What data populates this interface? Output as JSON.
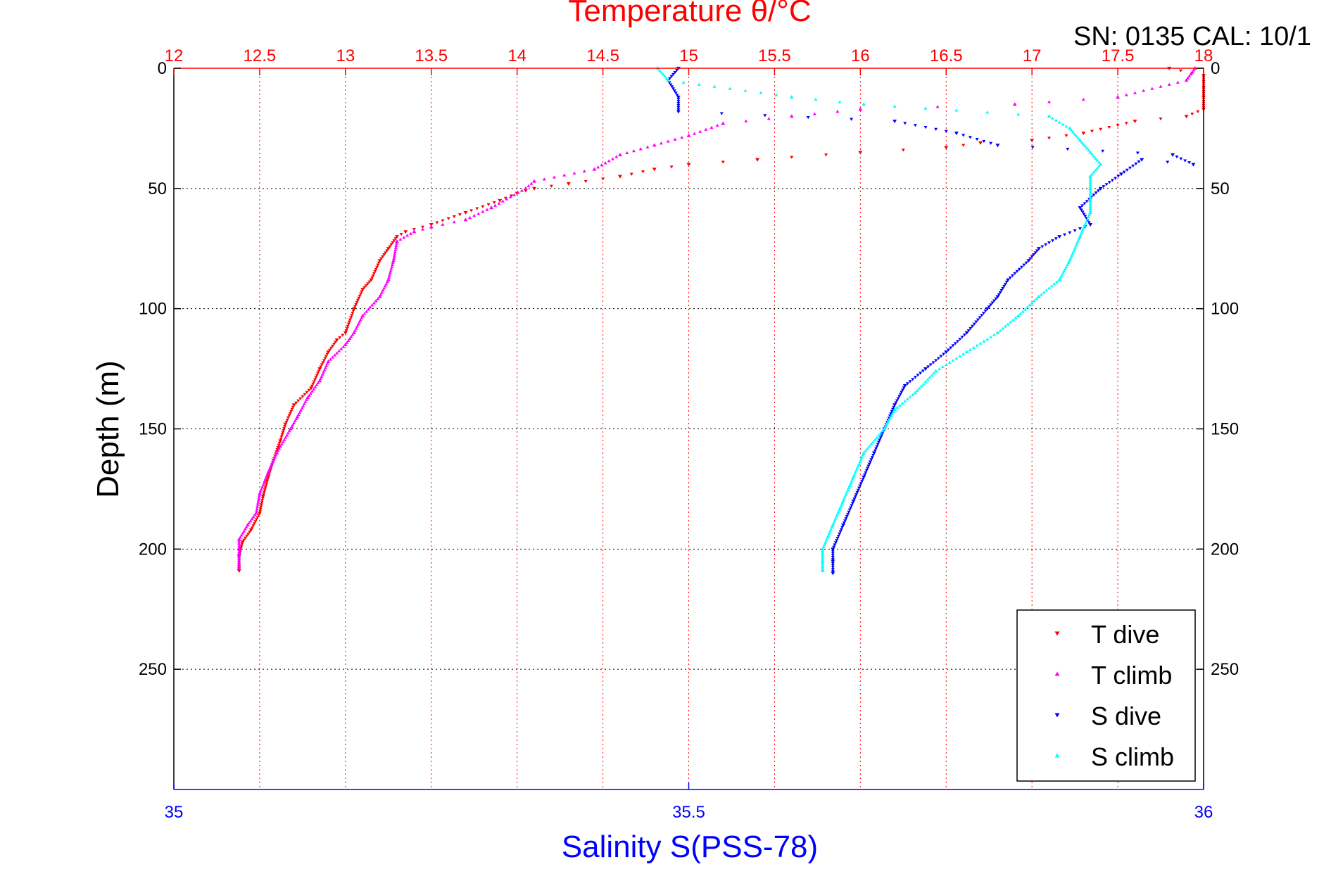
{
  "colors": {
    "t_dive": "#ff0000",
    "t_climb": "#ff00ff",
    "s_dive": "#0000ff",
    "s_climb": "#00ffff",
    "frame": "#000000"
  },
  "header": {
    "serial_text": "SN: 0135  CAL: 10/1"
  },
  "chart_data": {
    "type": "scatter",
    "title": "Temperature θ/°C",
    "ylabel": "Depth (m)",
    "xlabel": "Salinity S(PSS-78)",
    "x_top": {
      "label": "Temperature θ/°C",
      "range": [
        12,
        18
      ],
      "ticks": [
        "12",
        "12.5",
        "13",
        "13.5",
        "14",
        "14.5",
        "15",
        "15.5",
        "16",
        "16.5",
        "17",
        "17.5",
        "18"
      ]
    },
    "x_bottom": {
      "label": "Salinity S(PSS-78)",
      "range": [
        35,
        36
      ],
      "ticks": [
        "35",
        "35.5",
        "36"
      ]
    },
    "y": {
      "range": [
        0,
        300
      ],
      "reversed": true,
      "ticks": [
        "0",
        "50",
        "100",
        "150",
        "200",
        "250"
      ]
    },
    "grid": true,
    "legend_position": "bottom-right",
    "series": [
      {
        "name": "T dive",
        "axis": "top",
        "color": "#ff0000",
        "marker": "triangle-down",
        "points": [
          [
            17.8,
            0
          ],
          [
            18.0,
            3
          ],
          [
            18.0,
            8
          ],
          [
            18.0,
            12
          ],
          [
            18.0,
            17
          ],
          [
            17.9,
            20
          ],
          [
            17.6,
            22
          ],
          [
            17.3,
            27
          ],
          [
            17.0,
            30
          ],
          [
            16.7,
            31
          ],
          [
            16.5,
            33
          ],
          [
            16.0,
            35
          ],
          [
            15.4,
            38
          ],
          [
            15.0,
            40
          ],
          [
            14.8,
            42
          ],
          [
            14.6,
            45
          ],
          [
            14.3,
            48
          ],
          [
            14.1,
            50
          ],
          [
            14.0,
            52
          ],
          [
            13.9,
            55
          ],
          [
            13.7,
            60
          ],
          [
            13.5,
            65
          ],
          [
            13.35,
            68
          ],
          [
            13.3,
            70
          ],
          [
            13.25,
            75
          ],
          [
            13.2,
            80
          ],
          [
            13.15,
            88
          ],
          [
            13.1,
            92
          ],
          [
            13.05,
            100
          ],
          [
            13.0,
            110
          ],
          [
            12.95,
            113
          ],
          [
            12.9,
            118
          ],
          [
            12.85,
            125
          ],
          [
            12.8,
            133
          ],
          [
            12.7,
            140
          ],
          [
            12.65,
            148
          ],
          [
            12.62,
            155
          ],
          [
            12.58,
            163
          ],
          [
            12.55,
            170
          ],
          [
            12.52,
            178
          ],
          [
            12.5,
            185
          ],
          [
            12.45,
            192
          ],
          [
            12.4,
            197
          ],
          [
            12.38,
            203
          ],
          [
            12.38,
            209
          ]
        ]
      },
      {
        "name": "T climb",
        "axis": "top",
        "color": "#ff00ff",
        "marker": "triangle-up",
        "points": [
          [
            17.95,
            0
          ],
          [
            17.9,
            5
          ],
          [
            17.5,
            12
          ],
          [
            16.9,
            15
          ],
          [
            16.0,
            17
          ],
          [
            15.6,
            20
          ],
          [
            15.2,
            23
          ],
          [
            15.0,
            28
          ],
          [
            14.8,
            32
          ],
          [
            14.6,
            36
          ],
          [
            14.45,
            42
          ],
          [
            14.1,
            47
          ],
          [
            14.05,
            50
          ],
          [
            13.85,
            58
          ],
          [
            13.7,
            63
          ],
          [
            13.5,
            66
          ],
          [
            13.4,
            68
          ],
          [
            13.3,
            72
          ],
          [
            13.28,
            80
          ],
          [
            13.25,
            88
          ],
          [
            13.2,
            95
          ],
          [
            13.1,
            103
          ],
          [
            13.05,
            110
          ],
          [
            13.0,
            115
          ],
          [
            12.9,
            122
          ],
          [
            12.85,
            130
          ],
          [
            12.78,
            137
          ],
          [
            12.72,
            145
          ],
          [
            12.68,
            150
          ],
          [
            12.6,
            160
          ],
          [
            12.55,
            168
          ],
          [
            12.5,
            177
          ],
          [
            12.48,
            185
          ],
          [
            12.43,
            190
          ],
          [
            12.38,
            196
          ],
          [
            12.38,
            202
          ],
          [
            12.38,
            208
          ]
        ]
      },
      {
        "name": "S dive",
        "axis": "bottom",
        "color": "#0000ff",
        "marker": "triangle-down",
        "points": [
          [
            35.49,
            0
          ],
          [
            35.48,
            5
          ],
          [
            35.49,
            12
          ],
          [
            35.49,
            18
          ],
          [
            35.7,
            22
          ],
          [
            35.76,
            27
          ],
          [
            35.8,
            32
          ],
          [
            35.97,
            36
          ],
          [
            35.99,
            40
          ],
          [
            35.94,
            38
          ],
          [
            35.92,
            44
          ],
          [
            35.9,
            50
          ],
          [
            35.88,
            58
          ],
          [
            35.89,
            65
          ],
          [
            35.86,
            70
          ],
          [
            35.84,
            75
          ],
          [
            35.83,
            80
          ],
          [
            35.81,
            88
          ],
          [
            35.8,
            95
          ],
          [
            35.79,
            100
          ],
          [
            35.77,
            110
          ],
          [
            35.75,
            118
          ],
          [
            35.73,
            125
          ],
          [
            35.71,
            132
          ],
          [
            35.7,
            140
          ],
          [
            35.69,
            150
          ],
          [
            35.68,
            160
          ],
          [
            35.67,
            170
          ],
          [
            35.66,
            180
          ],
          [
            35.65,
            190
          ],
          [
            35.64,
            200
          ],
          [
            35.64,
            205
          ],
          [
            35.64,
            210
          ]
        ]
      },
      {
        "name": "S climb",
        "axis": "bottom",
        "color": "#00ffff",
        "marker": "triangle-up",
        "points": [
          [
            35.47,
            0
          ],
          [
            35.48,
            5
          ],
          [
            35.6,
            12
          ],
          [
            35.67,
            15
          ],
          [
            35.85,
            20
          ],
          [
            35.87,
            25
          ],
          [
            35.88,
            30
          ],
          [
            35.89,
            35
          ],
          [
            35.9,
            40
          ],
          [
            35.89,
            45
          ],
          [
            35.89,
            50
          ],
          [
            35.89,
            55
          ],
          [
            35.89,
            60
          ],
          [
            35.88,
            70
          ],
          [
            35.87,
            80
          ],
          [
            35.86,
            88
          ],
          [
            35.84,
            95
          ],
          [
            35.82,
            103
          ],
          [
            35.8,
            110
          ],
          [
            35.77,
            118
          ],
          [
            35.74,
            126
          ],
          [
            35.72,
            135
          ],
          [
            35.7,
            142
          ],
          [
            35.69,
            150
          ],
          [
            35.67,
            160
          ],
          [
            35.66,
            170
          ],
          [
            35.65,
            180
          ],
          [
            35.64,
            190
          ],
          [
            35.63,
            200
          ],
          [
            35.63,
            205
          ],
          [
            35.63,
            209
          ]
        ]
      }
    ]
  }
}
